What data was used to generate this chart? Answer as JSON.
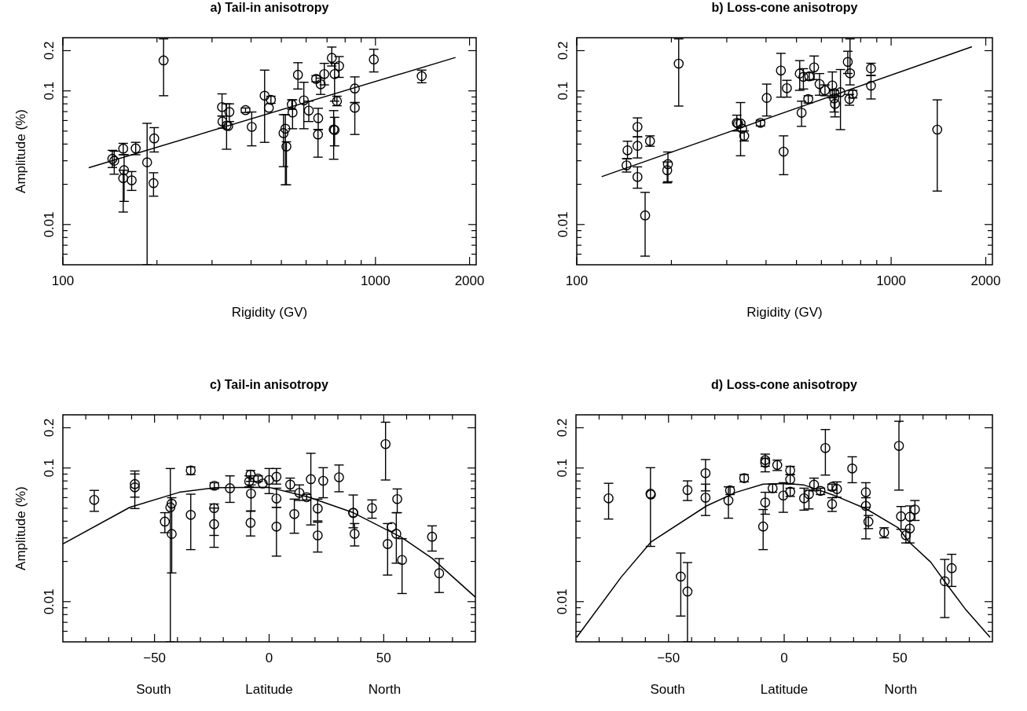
{
  "chart_data": [
    {
      "type": "scatter",
      "title": "a) Tail-in anisotropy",
      "xlabel": "Rigidity (GV)",
      "ylabel": "Amplitude (%)",
      "log": "xy",
      "marker": "circle",
      "xlim": [
        100,
        2100
      ],
      "ylim": [
        0.005,
        0.25
      ],
      "xticks": [
        100,
        {
          "value": 200,
          "label": null
        },
        {
          "value": 300,
          "label": null
        },
        {
          "value": 400,
          "label": null
        },
        {
          "value": 500,
          "label": null
        },
        {
          "value": 600,
          "label": null
        },
        {
          "value": 700,
          "label": null
        },
        {
          "value": 800,
          "label": null
        },
        {
          "value": 900,
          "label": null
        },
        1000,
        2000
      ],
      "yticks": [
        {
          "value": 0.006,
          "label": null
        },
        {
          "value": 0.007,
          "label": null
        },
        {
          "value": 0.008,
          "label": null
        },
        {
          "value": 0.009,
          "label": null
        },
        0.01,
        {
          "value": 0.02,
          "label": null
        },
        {
          "value": 0.03,
          "label": null
        },
        {
          "value": 0.04,
          "label": null
        },
        {
          "value": 0.05,
          "label": null
        },
        {
          "value": 0.06,
          "label": null
        },
        {
          "value": 0.07,
          "label": null
        },
        {
          "value": 0.08,
          "label": null
        },
        {
          "value": 0.09,
          "label": null
        },
        0.1,
        0.2
      ],
      "series": [
        {
          "type": "scatter",
          "color": "#000000",
          "x": [
            144,
            146,
            156,
            157,
            156,
            166,
            171,
            186,
            196,
            195,
            210,
            323,
            324,
            334,
            341,
            338,
            384,
            402,
            442,
            463,
            456,
            508,
            515,
            519,
            540,
            543,
            565,
            590,
            612,
            646,
            668,
            656,
            655,
            686,
            725,
            740,
            765,
            753,
            735,
            740,
            859,
            859,
            988,
            1406
          ],
          "values": [
            0.031,
            0.03,
            0.037,
            0.0255,
            0.0222,
            0.0214,
            0.0371,
            0.0292,
            0.0441,
            0.0204,
            0.169,
            0.0757,
            0.059,
            0.0551,
            0.0695,
            0.0546,
            0.0718,
            0.0538,
            0.092,
            0.0857,
            0.0748,
            0.0483,
            0.0521,
            0.0383,
            0.0792,
            0.0689,
            0.132,
            0.0849,
            0.0712,
            0.123,
            0.112,
            0.0625,
            0.0472,
            0.1336,
            0.1766,
            0.1336,
            0.1535,
            0.0838,
            0.0514,
            0.0509,
            0.1042,
            0.0748,
            0.1718,
            0.129
          ],
          "errors": [
            [
              0.0267,
              0.0359
            ],
            [
              0.0238,
              0.0354
            ],
            [
              0.0333,
              0.0405
            ],
            [
              0.0149,
              0.0333
            ],
            [
              0.0124,
              0.0255
            ],
            [
              0.018,
              0.0249
            ],
            [
              0.0333,
              0.0412
            ],
            [
              0.005,
              0.0572
            ],
            [
              0.0349,
              0.0531
            ],
            [
              0.0163,
              0.0244
            ],
            [
              0.092,
              0.245
            ],
            [
              0.0649,
              0.095
            ],
            [
              0.0526,
              0.0649
            ],
            [
              0.0366,
              0.08
            ],
            [
              0.059,
              0.08
            ],
            null,
            [
              0.0689,
              0.0745
            ],
            [
              0.0388,
              0.0695
            ],
            [
              0.0412,
              0.143
            ],
            [
              0.0807,
              0.0912
            ],
            null,
            [
              0.0271,
              0.0664
            ],
            [
              0.0198,
              0.0664
            ],
            [
              0.0198,
              0.0416
            ],
            [
              0.0728,
              0.0857
            ],
            [
              0.0521,
              0.0857
            ],
            [
              0.1033,
              0.1625
            ],
            [
              0.0521,
              0.116
            ],
            [
              0.059,
              0.0838
            ],
            [
              0.117,
              0.13
            ],
            [
              0.0941,
              0.1245
            ],
            [
              0.0514,
              0.0741
            ],
            [
              0.0319,
              0.0514
            ],
            [
              0.1109,
              0.1607
            ],
            [
              0.1535,
              0.2128
            ],
            [
              0.0838,
              0.1607
            ],
            [
              0.1262,
              0.1807
            ],
            [
              0.0774,
              0.0912
            ],
            [
              0.0308,
              0.0712
            ],
            [
              0.0388,
              0.0634
            ],
            [
              0.0818,
              0.1273
            ],
            [
              0.0472,
              0.0818
            ],
            [
              0.1386,
              0.205
            ],
            [
              0.115,
              0.143
            ]
          ]
        },
        {
          "type": "line",
          "marker": "none",
          "line_style": "solid",
          "color": "#000000",
          "x": [
            121,
            1804
          ],
          "values": [
            0.0266,
            0.178
          ]
        }
      ]
    },
    {
      "type": "scatter",
      "title": "b) Loss-cone anisotropy",
      "xlabel": "Rigidity (GV)",
      "log": "xy",
      "marker": "circle",
      "xlim": [
        100,
        2100
      ],
      "ylim": [
        0.005,
        0.25
      ],
      "xticks": [
        100,
        {
          "value": 200,
          "label": null
        },
        {
          "value": 300,
          "label": null
        },
        {
          "value": 400,
          "label": null
        },
        {
          "value": 500,
          "label": null
        },
        {
          "value": 600,
          "label": null
        },
        {
          "value": 700,
          "label": null
        },
        {
          "value": 800,
          "label": null
        },
        {
          "value": 900,
          "label": null
        },
        1000,
        2000
      ],
      "yticks": [
        {
          "value": 0.006,
          "label": null
        },
        {
          "value": 0.007,
          "label": null
        },
        {
          "value": 0.008,
          "label": null
        },
        {
          "value": 0.009,
          "label": null
        },
        0.01,
        {
          "value": 0.02,
          "label": null
        },
        {
          "value": 0.03,
          "label": null
        },
        {
          "value": 0.04,
          "label": null
        },
        {
          "value": 0.05,
          "label": null
        },
        {
          "value": 0.06,
          "label": null
        },
        {
          "value": 0.07,
          "label": null
        },
        {
          "value": 0.08,
          "label": null
        },
        {
          "value": 0.09,
          "label": null
        },
        0.1,
        0.2
      ],
      "series": [
        {
          "type": "scatter",
          "color": "#000000",
          "x": [
            144,
            145,
            156,
            156,
            156,
            165,
            171,
            195,
            194,
            211,
            323,
            326,
            332,
            336,
            341,
            384,
            402,
            446,
            455,
            466,
            512,
            519,
            526,
            549,
            545,
            569,
            592,
            616,
            650,
            660,
            659,
            663,
            690,
            728,
            740,
            737,
            755,
            863,
            863,
            1402
          ],
          "values": [
            0.0277,
            0.0359,
            0.0538,
            0.0388,
            0.0227,
            0.0117,
            0.0422,
            0.0283,
            0.0255,
            0.16,
            0.0577,
            0.0569,
            0.0571,
            0.0521,
            0.0461,
            0.0577,
            0.0886,
            0.142,
            0.0351,
            0.1047,
            0.1348,
            0.0686,
            0.1273,
            0.1285,
            0.087,
            0.15,
            0.1124,
            0.1009,
            0.1098,
            0.0963,
            0.0878,
            0.08,
            0.0977,
            0.1647,
            0.1353,
            0.087,
            0.095,
            0.1472,
            0.1093,
            0.0513
          ],
          "errors": [
            [
              0.0247,
              0.0311
            ],
            [
              0.0311,
              0.042
            ],
            [
              0.0453,
              0.0628
            ],
            [
              0.0315,
              0.0453
            ],
            [
              0.0187,
              0.027
            ],
            [
              0.0058,
              0.0174
            ],
            [
              0.0385,
              0.0461
            ],
            [
              0.0209,
              0.0349
            ],
            [
              0.0205,
              0.0294
            ],
            [
              0.077,
              0.245
            ],
            [
              0.0501,
              0.0658
            ],
            null,
            [
              0.0327,
              0.0818
            ],
            null,
            [
              0.0422,
              0.0501
            ],
            [
              0.0546,
              0.0604
            ],
            [
              0.0649,
              0.1124
            ],
            [
              0.0898,
              0.191
            ],
            [
              0.0236,
              0.0461
            ],
            [
              0.0898,
              0.12
            ],
            [
              0.1009,
              0.1685
            ],
            [
              0.0543,
              0.0838
            ],
            [
              0.1033,
              0.1466
            ],
            [
              0.1205,
              0.1366
            ],
            [
              0.0811,
              0.092
            ],
            [
              0.1216,
              0.1824
            ],
            [
              0.0928,
              0.1348
            ],
            [
              0.092,
              0.1109
            ],
            [
              0.0886,
              0.1386
            ],
            null,
            [
              0.0695,
              0.1009
            ],
            [
              0.0639,
              0.092
            ],
            [
              0.0513,
              0.1445
            ],
            [
              0.135,
              0.198
            ],
            [
              0.1109,
              0.245
            ],
            [
              0.0781,
              0.0941
            ],
            [
              0.0886,
              0.1009
            ],
            [
              0.1304,
              0.161
            ],
            [
              0.087,
              0.1304
            ],
            [
              0.0178,
              0.0857
            ]
          ]
        },
        {
          "type": "line",
          "marker": "none",
          "line_style": "solid",
          "color": "#000000",
          "x": [
            120,
            1807
          ],
          "values": [
            0.0228,
            0.214
          ]
        }
      ]
    },
    {
      "type": "scatter",
      "title": "c) Tail-in anisotropy",
      "xlabel": "Latitude",
      "ylabel": "Amplitude (%)",
      "annotations": [
        "South",
        "North"
      ],
      "log": "y",
      "marker": "circle",
      "xlim": [
        -90,
        90
      ],
      "ylim": [
        0.005,
        0.25
      ],
      "xticks": [
        {
          "value": -80,
          "label": null
        },
        {
          "value": -70,
          "label": null
        },
        {
          "value": -60,
          "label": null
        },
        {
          "value": -50,
          "label": "−50"
        },
        {
          "value": -40,
          "label": null
        },
        {
          "value": -30,
          "label": null
        },
        {
          "value": -20,
          "label": null
        },
        {
          "value": -10,
          "label": null
        },
        0,
        {
          "value": 10,
          "label": null
        },
        {
          "value": 20,
          "label": null
        },
        {
          "value": 30,
          "label": null
        },
        {
          "value": 40,
          "label": null
        },
        50,
        {
          "value": 60,
          "label": null
        },
        {
          "value": 70,
          "label": null
        },
        {
          "value": 80,
          "label": null
        }
      ],
      "yticks": [
        {
          "value": 0.006,
          "label": null
        },
        {
          "value": 0.007,
          "label": null
        },
        {
          "value": 0.008,
          "label": null
        },
        {
          "value": 0.009,
          "label": null
        },
        0.01,
        {
          "value": 0.02,
          "label": null
        },
        {
          "value": 0.03,
          "label": null
        },
        {
          "value": 0.04,
          "label": null
        },
        {
          "value": 0.05,
          "label": null
        },
        {
          "value": 0.06,
          "label": null
        },
        {
          "value": 0.07,
          "label": null
        },
        {
          "value": 0.08,
          "label": null
        },
        {
          "value": 0.09,
          "label": null
        },
        0.1,
        0.2
      ],
      "series": [
        {
          "type": "scatter",
          "color": "#000000",
          "x": [
            -76.3,
            -58.6,
            -58.6,
            -45.5,
            -43.1,
            -42.5,
            -42.5,
            -34.2,
            -34.2,
            -23.9,
            -24.0,
            -24.0,
            -17.1,
            -8.7,
            -8.1,
            -7.9,
            -8.1,
            -4.8,
            -2.8,
            0,
            3.2,
            3.2,
            3.2,
            9.2,
            11.0,
            13.2,
            16.4,
            18.2,
            21.2,
            21.2,
            23.6,
            30.5,
            36.7,
            36.7,
            37.3,
            44.9,
            50.8,
            51.7,
            53.5,
            55.9,
            55.5,
            58.0,
            71.1,
            74.2
          ],
          "values": [
            0.0577,
            0.0758,
            0.0716,
            0.0397,
            0.0508,
            0.0541,
            0.0321,
            0.0958,
            0.0446,
            0.0737,
            0.0501,
            0.038,
            0.0706,
            0.0794,
            0.0893,
            0.0643,
            0.0389,
            0.0833,
            0.0765,
            0.0813,
            0.086,
            0.0591,
            0.0364,
            0.0751,
            0.0452,
            0.0652,
            0.0605,
            0.0825,
            0.0497,
            0.0313,
            0.0802,
            0.0852,
            0.0463,
            0.046,
            0.0322,
            0.0501,
            0.151,
            0.027,
            0.0362,
            0.0585,
            0.0322,
            0.0205,
            0.0306,
            0.0163
          ],
          "errors": [
            [
              0.0474,
              0.068
            ],
            [
              0.0605,
              0.095
            ],
            [
              0.0497,
              0.0902
            ],
            [
              0.0328,
              0.0463
            ],
            [
              0.005,
              0.0991
            ],
            [
              0.0164,
              0.0599
            ],
            null,
            [
              0.0893,
              0.1019
            ],
            [
              0.0245,
              0.0637
            ],
            [
              0.0697,
              0.0776
            ],
            [
              0.0313,
              0.0538
            ],
            [
              0.0255,
              0.0501
            ],
            [
              0.0553,
              0.0873
            ],
            [
              0.0723,
              0.0873
            ],
            [
              0.0794,
              0.0958
            ],
            [
              0.0478,
              0.0747
            ],
            [
              0.031,
              0.0474
            ],
            [
              0.0794,
              0.0873
            ],
            null,
            [
              0.0643,
              0.0991
            ],
            [
              0.0758,
              0.0991
            ],
            [
              0.0508,
              0.0706
            ],
            [
              0.0219,
              0.0508
            ],
            [
              0.0674,
              0.084
            ],
            [
              0.0325,
              0.0585
            ],
            [
              0.0572,
              0.0747
            ],
            [
              0.0577,
              0.0634
            ],
            [
              0.0375,
              0.1288
            ],
            [
              0.0402,
              0.0585
            ],
            [
              0.0235,
              0.0393
            ],
            [
              0.0599,
              0.1005
            ],
            [
              0.0664,
              0.1053
            ],
            [
              0.0357,
              0.0628
            ],
            null,
            [
              0.0261,
              0.0384
            ],
            [
              0.0421,
              0.0577
            ],
            [
              0.0813,
              0.22
            ],
            [
              0.0158,
              0.0384
            ],
            null,
            [
              0.0463,
              0.0697
            ],
            [
              0.0194,
              0.0463
            ],
            [
              0.0115,
              0.0296
            ],
            [
              0.0239,
              0.0369
            ],
            [
              0.0117,
              0.021
            ]
          ]
        },
        {
          "type": "line",
          "marker": "none",
          "line_style": "solid",
          "color": "#000000",
          "x": [
            -90,
            -60.8,
            -39.2,
            -23.7,
            0,
            17.0,
            36.7,
            57.7,
            71.1,
            90
          ],
          "values": [
            0.027,
            0.0508,
            0.0658,
            0.0713,
            0.0716,
            0.0608,
            0.0463,
            0.0303,
            0.0211,
            0.0108
          ]
        }
      ]
    },
    {
      "type": "scatter",
      "title": "d) Loss-cone anisotropy",
      "xlabel": "Latitude",
      "annotations": [
        "South",
        "North"
      ],
      "log": "y",
      "marker": "circle",
      "xlim": [
        -90,
        90
      ],
      "ylim": [
        0.005,
        0.25
      ],
      "xticks": [
        {
          "value": -80,
          "label": null
        },
        {
          "value": -70,
          "label": null
        },
        {
          "value": -60,
          "label": null
        },
        {
          "value": -50,
          "label": "−50"
        },
        {
          "value": -40,
          "label": null
        },
        {
          "value": -30,
          "label": null
        },
        {
          "value": -20,
          "label": null
        },
        {
          "value": -10,
          "label": null
        },
        0,
        {
          "value": 10,
          "label": null
        },
        {
          "value": 20,
          "label": null
        },
        {
          "value": 30,
          "label": null
        },
        {
          "value": 40,
          "label": null
        },
        50,
        {
          "value": 60,
          "label": null
        },
        {
          "value": 70,
          "label": null
        },
        {
          "value": 80,
          "label": null
        }
      ],
      "yticks": [
        {
          "value": 0.006,
          "label": null
        },
        {
          "value": 0.007,
          "label": null
        },
        {
          "value": 0.008,
          "label": null
        },
        {
          "value": 0.009,
          "label": null
        },
        0.01,
        {
          "value": 0.02,
          "label": null
        },
        {
          "value": 0.03,
          "label": null
        },
        {
          "value": 0.04,
          "label": null
        },
        {
          "value": 0.05,
          "label": null
        },
        {
          "value": 0.06,
          "label": null
        },
        {
          "value": 0.07,
          "label": null
        },
        {
          "value": 0.08,
          "label": null
        },
        {
          "value": 0.09,
          "label": null
        },
        0.1,
        0.2
      ],
      "series": [
        {
          "type": "scatter",
          "color": "#000000",
          "x": [
            -75.9,
            -57.8,
            -57.6,
            -41.8,
            -34.0,
            -34.0,
            -44.7,
            -41.8,
            -24.1,
            -23.4,
            -17.3,
            -8.2,
            -8.2,
            -8.2,
            -9.1,
            -5.0,
            -3.0,
            -0.4,
            2.6,
            2.6,
            2.6,
            8.6,
            10.7,
            12.9,
            15.7,
            17.8,
            20.7,
            20.7,
            22.8,
            29.4,
            35.3,
            35.3,
            36.4,
            43.2,
            49.6,
            50.5,
            52.6,
            54.3,
            54.3,
            56.5,
            69.4,
            72.4
          ],
          "values": [
            0.0593,
            0.0642,
            0.0633,
            0.0683,
            0.0914,
            0.0599,
            0.0154,
            0.0119,
            0.0571,
            0.068,
            0.084,
            0.1146,
            0.1094,
            0.0552,
            0.0365,
            0.0706,
            0.1053,
            0.0622,
            0.0958,
            0.0821,
            0.0664,
            0.0593,
            0.0637,
            0.075,
            0.0674,
            0.141,
            0.0723,
            0.0537,
            0.0696,
            0.0991,
            0.0658,
            0.052,
            0.0397,
            0.0329,
            0.1464,
            0.0435,
            0.0314,
            0.0431,
            0.0352,
            0.0489,
            0.0142,
            0.0178
          ],
          "errors": [
            [
              0.0415,
              0.0768
            ],
            [
              0.0259,
              0.1005
            ],
            null,
            [
              0.0571,
              0.0801
            ],
            [
              0.0674,
              0.1157
            ],
            [
              0.0441,
              0.0757
            ],
            [
              0.0078,
              0.0231
            ],
            [
              0.005,
              0.0196
            ],
            [
              0.0421,
              0.0723
            ],
            [
              0.0633,
              0.0723
            ],
            [
              0.0787,
              0.0893
            ],
            [
              0.1029,
              0.127
            ],
            [
              0.0936,
              0.1185
            ],
            [
              0.0451,
              0.0658
            ],
            [
              0.0245,
              0.0489
            ],
            [
              0.0658,
              0.0757
            ],
            [
              0.0958,
              0.1146
            ],
            [
              0.0466,
              0.0776
            ],
            [
              0.0893,
              0.1029
            ],
            [
              0.0757,
              0.0893
            ],
            [
              0.0613,
              0.0706
            ],
            [
              0.0484,
              0.0706
            ],
            [
              0.0494,
              0.0683
            ],
            [
              0.0674,
              0.084
            ],
            [
              0.0633,
              0.0706
            ],
            [
              0.0885,
              0.194
            ],
            [
              0.0683,
              0.0757
            ],
            [
              0.0473,
              0.0599
            ],
            [
              0.0604,
              0.0787
            ],
            [
              0.0776,
              0.1213
            ],
            [
              0.0508,
              0.0776
            ],
            [
              0.0295,
              0.0599
            ],
            [
              0.0352,
              0.0441
            ],
            [
              0.03,
              0.0357
            ],
            [
              0.0683,
              0.2238
            ],
            [
              0.0348,
              0.0515
            ],
            [
              0.0275,
              0.0348
            ],
            [
              0.0275,
              0.052
            ],
            null,
            [
              0.0405,
              0.0571
            ],
            [
              0.0076,
              0.0207
            ],
            [
              0.013,
              0.0226
            ]
          ]
        },
        {
          "type": "line",
          "marker": "none",
          "line_style": "solid",
          "color": "#000000",
          "x": [
            -89.7,
            -70.4,
            -57.6,
            -33.6,
            -20.8,
            -9.1,
            0,
            8.4,
            21.3,
            35.3,
            49.3,
            54.0,
            63.3,
            69.7,
            78.5,
            89.0
          ],
          "values": [
            0.0054,
            0.0153,
            0.0279,
            0.052,
            0.0658,
            0.0757,
            0.0765,
            0.0748,
            0.0627,
            0.0496,
            0.0357,
            0.0279,
            0.0198,
            0.0139,
            0.0087,
            0.0054
          ]
        }
      ]
    }
  ]
}
